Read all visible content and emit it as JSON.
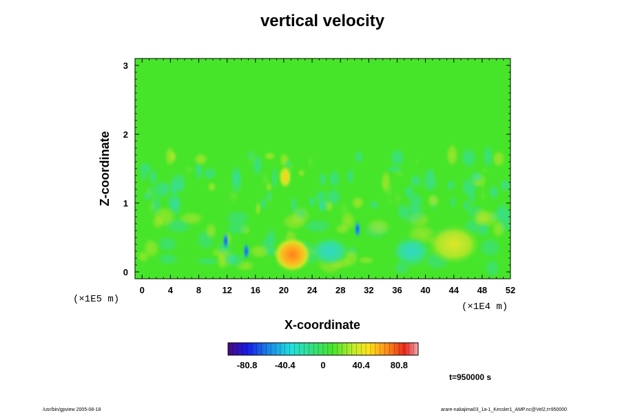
{
  "chart_data": {
    "type": "heatmap",
    "title": "vertical velocity",
    "xlabel": "X-coordinate",
    "ylabel": "Z-coordinate",
    "x_unit": "(×1E4 m)",
    "y_unit": "(×1E5 m)",
    "x_ticks": [
      "0",
      "4",
      "8",
      "12",
      "16",
      "20",
      "24",
      "28",
      "32",
      "36",
      "40",
      "44",
      "48",
      "52"
    ],
    "y_ticks": [
      "0",
      "1",
      "2",
      "3"
    ],
    "xlim": [
      -1,
      52
    ],
    "ylim": [
      -0.1,
      3.1
    ],
    "colorbar": {
      "range": [
        -101,
        101
      ],
      "ticks": [
        "-80.8",
        "-40.4",
        "0",
        "40.4",
        "80.8"
      ],
      "colormap": "rainbow"
    },
    "features": [
      {
        "x": 21.2,
        "z": 0.25,
        "value": 55,
        "desc": "warm updraft core"
      },
      {
        "x": 20.2,
        "z": 1.38,
        "value": 40
      },
      {
        "x": 11.8,
        "z": 0.45,
        "value": -70
      },
      {
        "x": 14.7,
        "z": 0.3,
        "value": -75
      },
      {
        "x": 30.4,
        "z": 0.62,
        "value": -75
      },
      {
        "x": 44.0,
        "z": 0.4,
        "value": 30
      },
      {
        "x": 38.0,
        "z": 0.3,
        "value": -25
      },
      {
        "x": 26.5,
        "z": 0.3,
        "value": -20
      }
    ]
  },
  "footer": {
    "left": "/usr/bin/gpview 2005-08-18",
    "right": "arare-nakajima03_1a-1_Kessler1_AMP.nc@Vel2,t=950000"
  },
  "time_label": "t=950000 s",
  "colors": {
    "background_field": "#47e52a",
    "frame": "#000000"
  }
}
